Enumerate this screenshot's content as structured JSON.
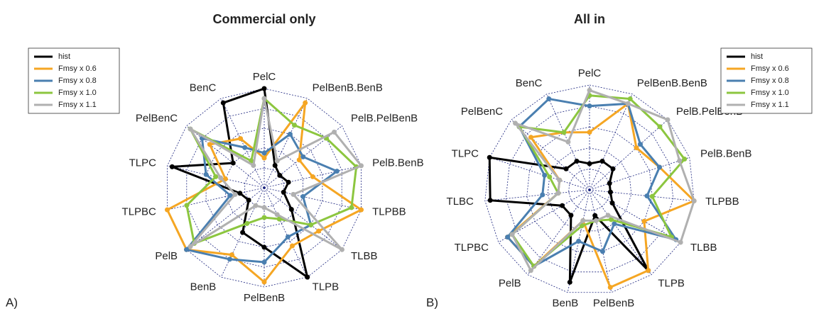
{
  "chart_data": [
    {
      "type": "radar",
      "title": "Commercial only",
      "panel_label": "A)",
      "legend_position": "upper left",
      "categories": [
        "PelC",
        "PelBenB.BenB",
        "PelB.PelBenB",
        "PelB.BenB",
        "TLPBB",
        "TLBB",
        "TLPB",
        "PelBenB",
        "BenB",
        "PelB",
        "TLPBC",
        "TLPC",
        "PelBenC",
        "BenC"
      ],
      "rlim": [
        0,
        1
      ],
      "rticks": [
        0.2,
        0.4,
        0.6,
        0.8,
        1.0
      ],
      "grid": true,
      "series": [
        {
          "name": "hist",
          "color": "#000000",
          "values": [
            1.0,
            0.25,
            0.2,
            0.25,
            0.2,
            0.35,
            1.0,
            0.6,
            0.5,
            0.2,
            0.25,
            0.95,
            0.4,
            0.95
          ]
        },
        {
          "name": "Fmsy x 0.6",
          "color": "#f5a623",
          "values": [
            0.3,
            0.95,
            0.45,
            0.5,
            1.0,
            0.7,
            0.65,
            0.95,
            0.75,
            1.0,
            1.0,
            0.4,
            0.7,
            0.55
          ]
        },
        {
          "name": "Fmsy x 0.8",
          "color": "#4a7fb0",
          "values": [
            0.35,
            0.6,
            0.5,
            0.75,
            0.4,
            0.6,
            0.55,
            0.75,
            0.8,
            1.0,
            0.35,
            0.6,
            0.8,
            0.45
          ]
        },
        {
          "name": "Fmsy x 1.0",
          "color": "#8cc63f",
          "values": [
            0.9,
            0.7,
            0.8,
            0.95,
            0.9,
            0.6,
            0.35,
            0.3,
            0.4,
            0.9,
            0.8,
            0.5,
            0.95,
            0.3
          ]
        },
        {
          "name": "Fmsy x 1.1",
          "color": "#b0b0b0",
          "values": [
            0.9,
            0.3,
            0.9,
            1.0,
            0.3,
            1.0,
            0.3,
            0.2,
            0.2,
            0.95,
            0.3,
            0.45,
            0.95,
            0.25
          ]
        }
      ]
    },
    {
      "type": "radar",
      "title": "All in",
      "panel_label": "B)",
      "legend_position": "upper right",
      "categories": [
        "PelC",
        "PelBenB.BenB",
        "PelB.PelBenB",
        "PelB.BenB",
        "TLPBB",
        "TLBB",
        "TLPB",
        "PelBenB",
        "BenB",
        "PelB",
        "TLPBC",
        "TLBC",
        "TLPC",
        "PelBenC",
        "BenC"
      ],
      "rlim": [
        0,
        1
      ],
      "rticks": [
        0.2,
        0.4,
        0.6,
        0.8,
        1.0
      ],
      "grid": true,
      "series": [
        {
          "name": "hist",
          "color": "#000000",
          "values": [
            0.25,
            0.3,
            0.3,
            0.2,
            0.2,
            0.25,
            0.95,
            0.25,
            0.9,
            0.3,
            0.3,
            0.95,
            1.0,
            0.3,
            0.3
          ]
        },
        {
          "name": "Fmsy x 0.6",
          "color": "#f5a623",
          "values": [
            0.55,
            0.9,
            0.6,
            0.7,
            1.0,
            0.6,
            0.95,
            0.95,
            0.3,
            0.9,
            0.9,
            0.3,
            0.3,
            0.75,
            0.6
          ]
        },
        {
          "name": "Fmsy x 0.8",
          "color": "#4a7fb0",
          "values": [
            0.8,
            0.9,
            0.65,
            0.7,
            0.55,
            0.95,
            0.4,
            0.6,
            0.5,
            0.9,
            0.9,
            0.45,
            0.45,
            0.9,
            0.95
          ]
        },
        {
          "name": "Fmsy x 1.0",
          "color": "#8cc63f",
          "values": [
            0.9,
            0.95,
            0.9,
            0.95,
            0.6,
            0.9,
            0.35,
            0.3,
            0.35,
            0.9,
            0.85,
            0.3,
            0.4,
            0.9,
            0.6
          ]
        },
        {
          "name": "Fmsy x 1.1",
          "color": "#b0b0b0",
          "values": [
            0.95,
            0.9,
            1.0,
            0.9,
            1.0,
            1.0,
            0.3,
            0.3,
            0.3,
            0.95,
            0.85,
            0.3,
            0.3,
            0.95,
            0.5
          ]
        }
      ]
    }
  ]
}
